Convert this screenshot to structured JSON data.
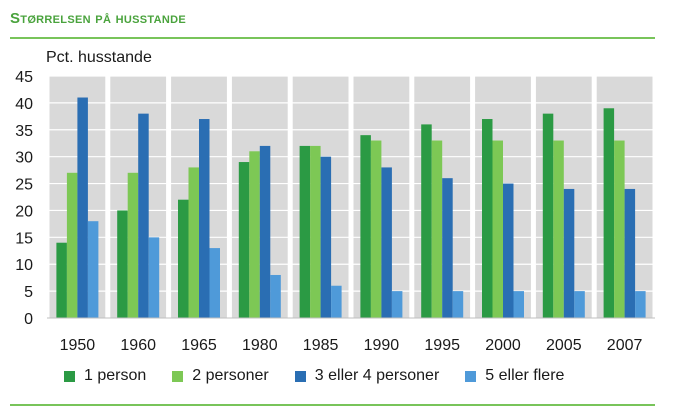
{
  "title": "Størrelsen på husstande",
  "colors": {
    "title": "#4aa33d",
    "rule": "#78c45a",
    "plot_bg": "#d9d9d9",
    "series": [
      "#2b9a44",
      "#7dc855",
      "#2a6eb3",
      "#4f9ad9"
    ]
  },
  "chart_data": {
    "type": "bar",
    "title": "",
    "ylabel": "Pct. husstande",
    "xlabel": "",
    "ylim": [
      0,
      45
    ],
    "yticks": [
      0,
      5,
      10,
      15,
      20,
      25,
      30,
      35,
      40,
      45
    ],
    "grid": true,
    "legend_position": "bottom",
    "categories": [
      "1950",
      "1960",
      "1965",
      "1980",
      "1985",
      "1990",
      "1995",
      "2000",
      "2005",
      "2007"
    ],
    "series": [
      {
        "name": "1 person",
        "values": [
          14,
          20,
          22,
          29,
          32,
          34,
          36,
          37,
          38,
          39
        ]
      },
      {
        "name": "2 personer",
        "values": [
          27,
          27,
          28,
          31,
          32,
          33,
          33,
          33,
          33,
          33
        ]
      },
      {
        "name": "3 eller 4 personer",
        "values": [
          41,
          38,
          37,
          32,
          30,
          28,
          26,
          25,
          24,
          24
        ]
      },
      {
        "name": "5 eller flere",
        "values": [
          18,
          15,
          13,
          8,
          6,
          5,
          5,
          5,
          5,
          5
        ]
      }
    ]
  }
}
